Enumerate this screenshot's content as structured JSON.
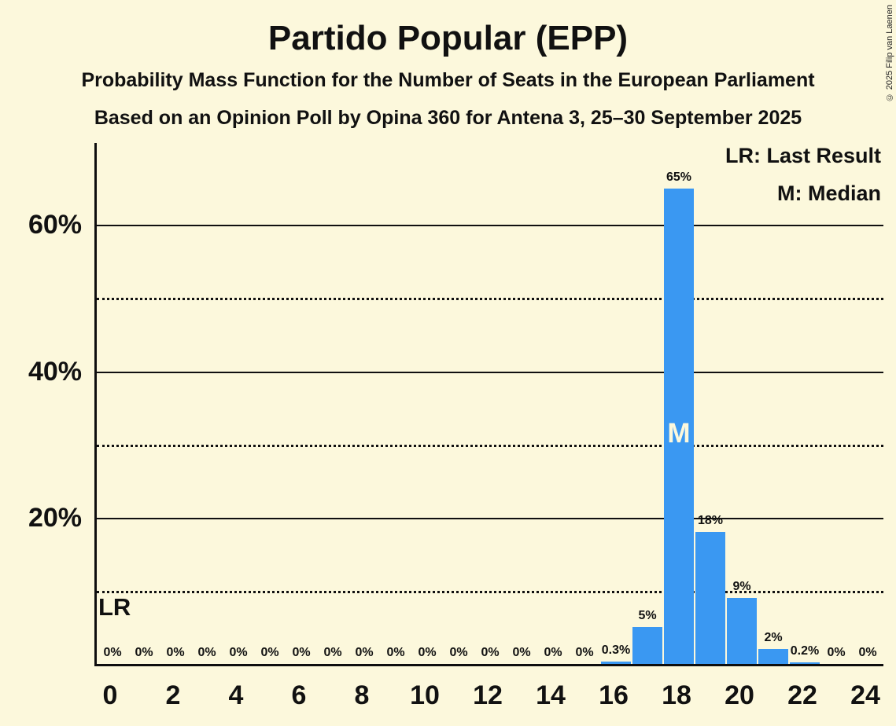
{
  "header": {
    "title": "Partido Popular (EPP)",
    "subtitle1": "Probability Mass Function for the Number of Seats in the European Parliament",
    "subtitle2": "Based on an Opinion Poll by Opina 360 for Antena 3, 25–30 September 2025"
  },
  "legend": {
    "lr": "LR: Last Result",
    "m": "M: Median"
  },
  "copyright": "© 2025 Filip van Laenen",
  "chart_data": {
    "type": "bar",
    "title": "Partido Popular (EPP)",
    "x": [
      0,
      1,
      2,
      3,
      4,
      5,
      6,
      7,
      8,
      9,
      10,
      11,
      12,
      13,
      14,
      15,
      16,
      17,
      18,
      19,
      20,
      21,
      22,
      23,
      24
    ],
    "values": [
      0,
      0,
      0,
      0,
      0,
      0,
      0,
      0,
      0,
      0,
      0,
      0,
      0,
      0,
      0,
      0,
      0.3,
      5,
      65,
      18,
      9,
      2,
      0.2,
      0,
      0
    ],
    "bar_labels": [
      "0%",
      "0%",
      "0%",
      "0%",
      "0%",
      "0%",
      "0%",
      "0%",
      "0%",
      "0%",
      "0%",
      "0%",
      "0%",
      "0%",
      "0%",
      "0%",
      "0.3%",
      "5%",
      "65%",
      "18%",
      "9%",
      "2%",
      "0.2%",
      "0%",
      "0%"
    ],
    "x_tick_seats": [
      0,
      2,
      4,
      6,
      8,
      10,
      12,
      14,
      16,
      18,
      20,
      22,
      24
    ],
    "x_tick_labels": [
      "0",
      "2",
      "4",
      "6",
      "8",
      "10",
      "12",
      "14",
      "16",
      "18",
      "20",
      "22",
      "24"
    ],
    "y_ticks": [
      {
        "value": 20,
        "label": "20%"
      },
      {
        "value": 40,
        "label": "40%"
      },
      {
        "value": 60,
        "label": "60%"
      }
    ],
    "solid_gridlines": [
      20,
      40,
      60
    ],
    "dotted_gridlines": [
      10,
      30,
      50
    ],
    "ylim": [
      0,
      71
    ],
    "median_seat": 18,
    "median_label": "M",
    "last_result_label": "LR",
    "legend_entries": [
      "LR: Last Result",
      "M: Median"
    ],
    "bar_color": "#3A98F2",
    "background_color": "#FCF8DC",
    "text_color": "#111111"
  }
}
